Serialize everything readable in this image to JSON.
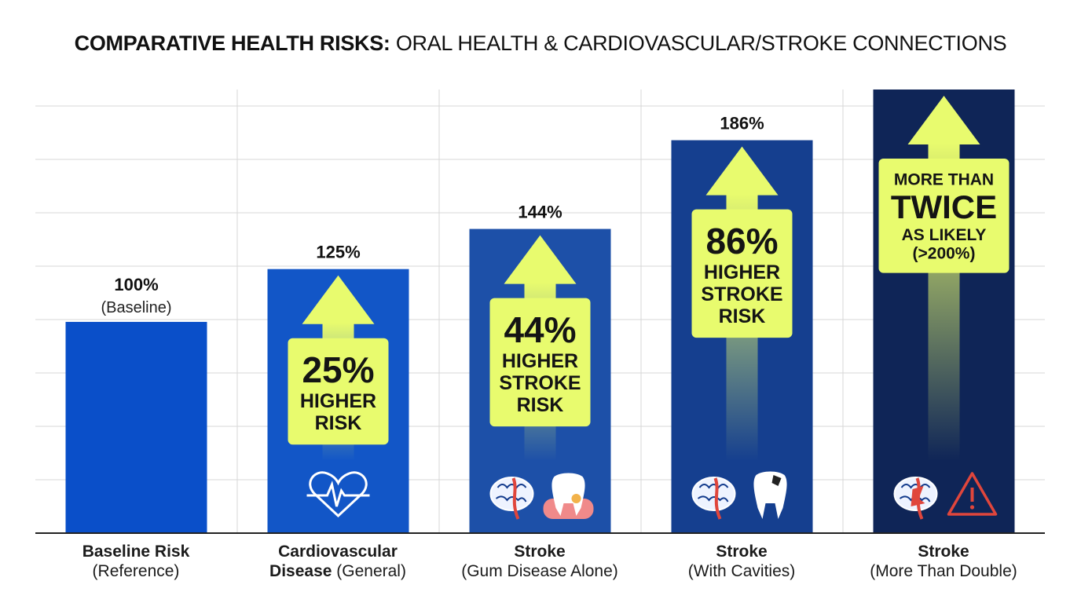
{
  "chart_data": {
    "type": "bar",
    "title_bold": "COMPARATIVE HEALTH RISKS:",
    "title_rest": "ORAL HEALTH & CARDIOVASCULAR/STROKE CONNECTIONS",
    "xlabel": "",
    "ylabel": "",
    "ylim": [
      0,
      210
    ],
    "grid": true,
    "categories": [
      {
        "bold": "Baseline Risk",
        "rest": "(Reference)"
      },
      {
        "bold": "Cardiovascular Disease",
        "rest": "(General)"
      },
      {
        "bold": "Stroke",
        "rest": "(Gum Disease Alone)"
      },
      {
        "bold": "Stroke",
        "rest": "(With Cavities)"
      },
      {
        "bold": "Stroke",
        "rest": "(More Than Double)"
      }
    ],
    "values": [
      100,
      125,
      144,
      186,
      210
    ],
    "value_labels": [
      "100%",
      "125%",
      "144%",
      "186%",
      ""
    ],
    "value_sublabels": [
      "(Baseline)",
      "",
      "",
      "",
      ""
    ],
    "callouts": [
      null,
      {
        "big": "25%",
        "lines": [
          "HIGHER",
          "RISK"
        ]
      },
      {
        "big": "44%",
        "lines": [
          "HIGHER",
          "STROKE",
          "RISK"
        ]
      },
      {
        "big": "86%",
        "lines": [
          "HIGHER",
          "STROKE",
          "RISK"
        ]
      },
      {
        "pre": "MORE THAN",
        "big": "TWICE",
        "lines": [
          "AS LIKELY",
          "(>200%)"
        ]
      }
    ],
    "icons": [
      [],
      [
        "heart-pulse-icon"
      ],
      [
        "brain-icon",
        "inflamed-gum-tooth-icon"
      ],
      [
        "brain-icon",
        "cavity-tooth-icon"
      ],
      [
        "brain-alert-icon",
        "warning-triangle-icon"
      ]
    ],
    "colors": {
      "bars": [
        "#0a4fc9",
        "#1256c7",
        "#1d50a8",
        "#153f8f",
        "#0f2557"
      ],
      "arrow": "#e8fb6e",
      "callout_bg": "#e8fb6e",
      "callout_text": "#141414",
      "grid": "#d7d7d7",
      "axis": "#222222"
    }
  }
}
